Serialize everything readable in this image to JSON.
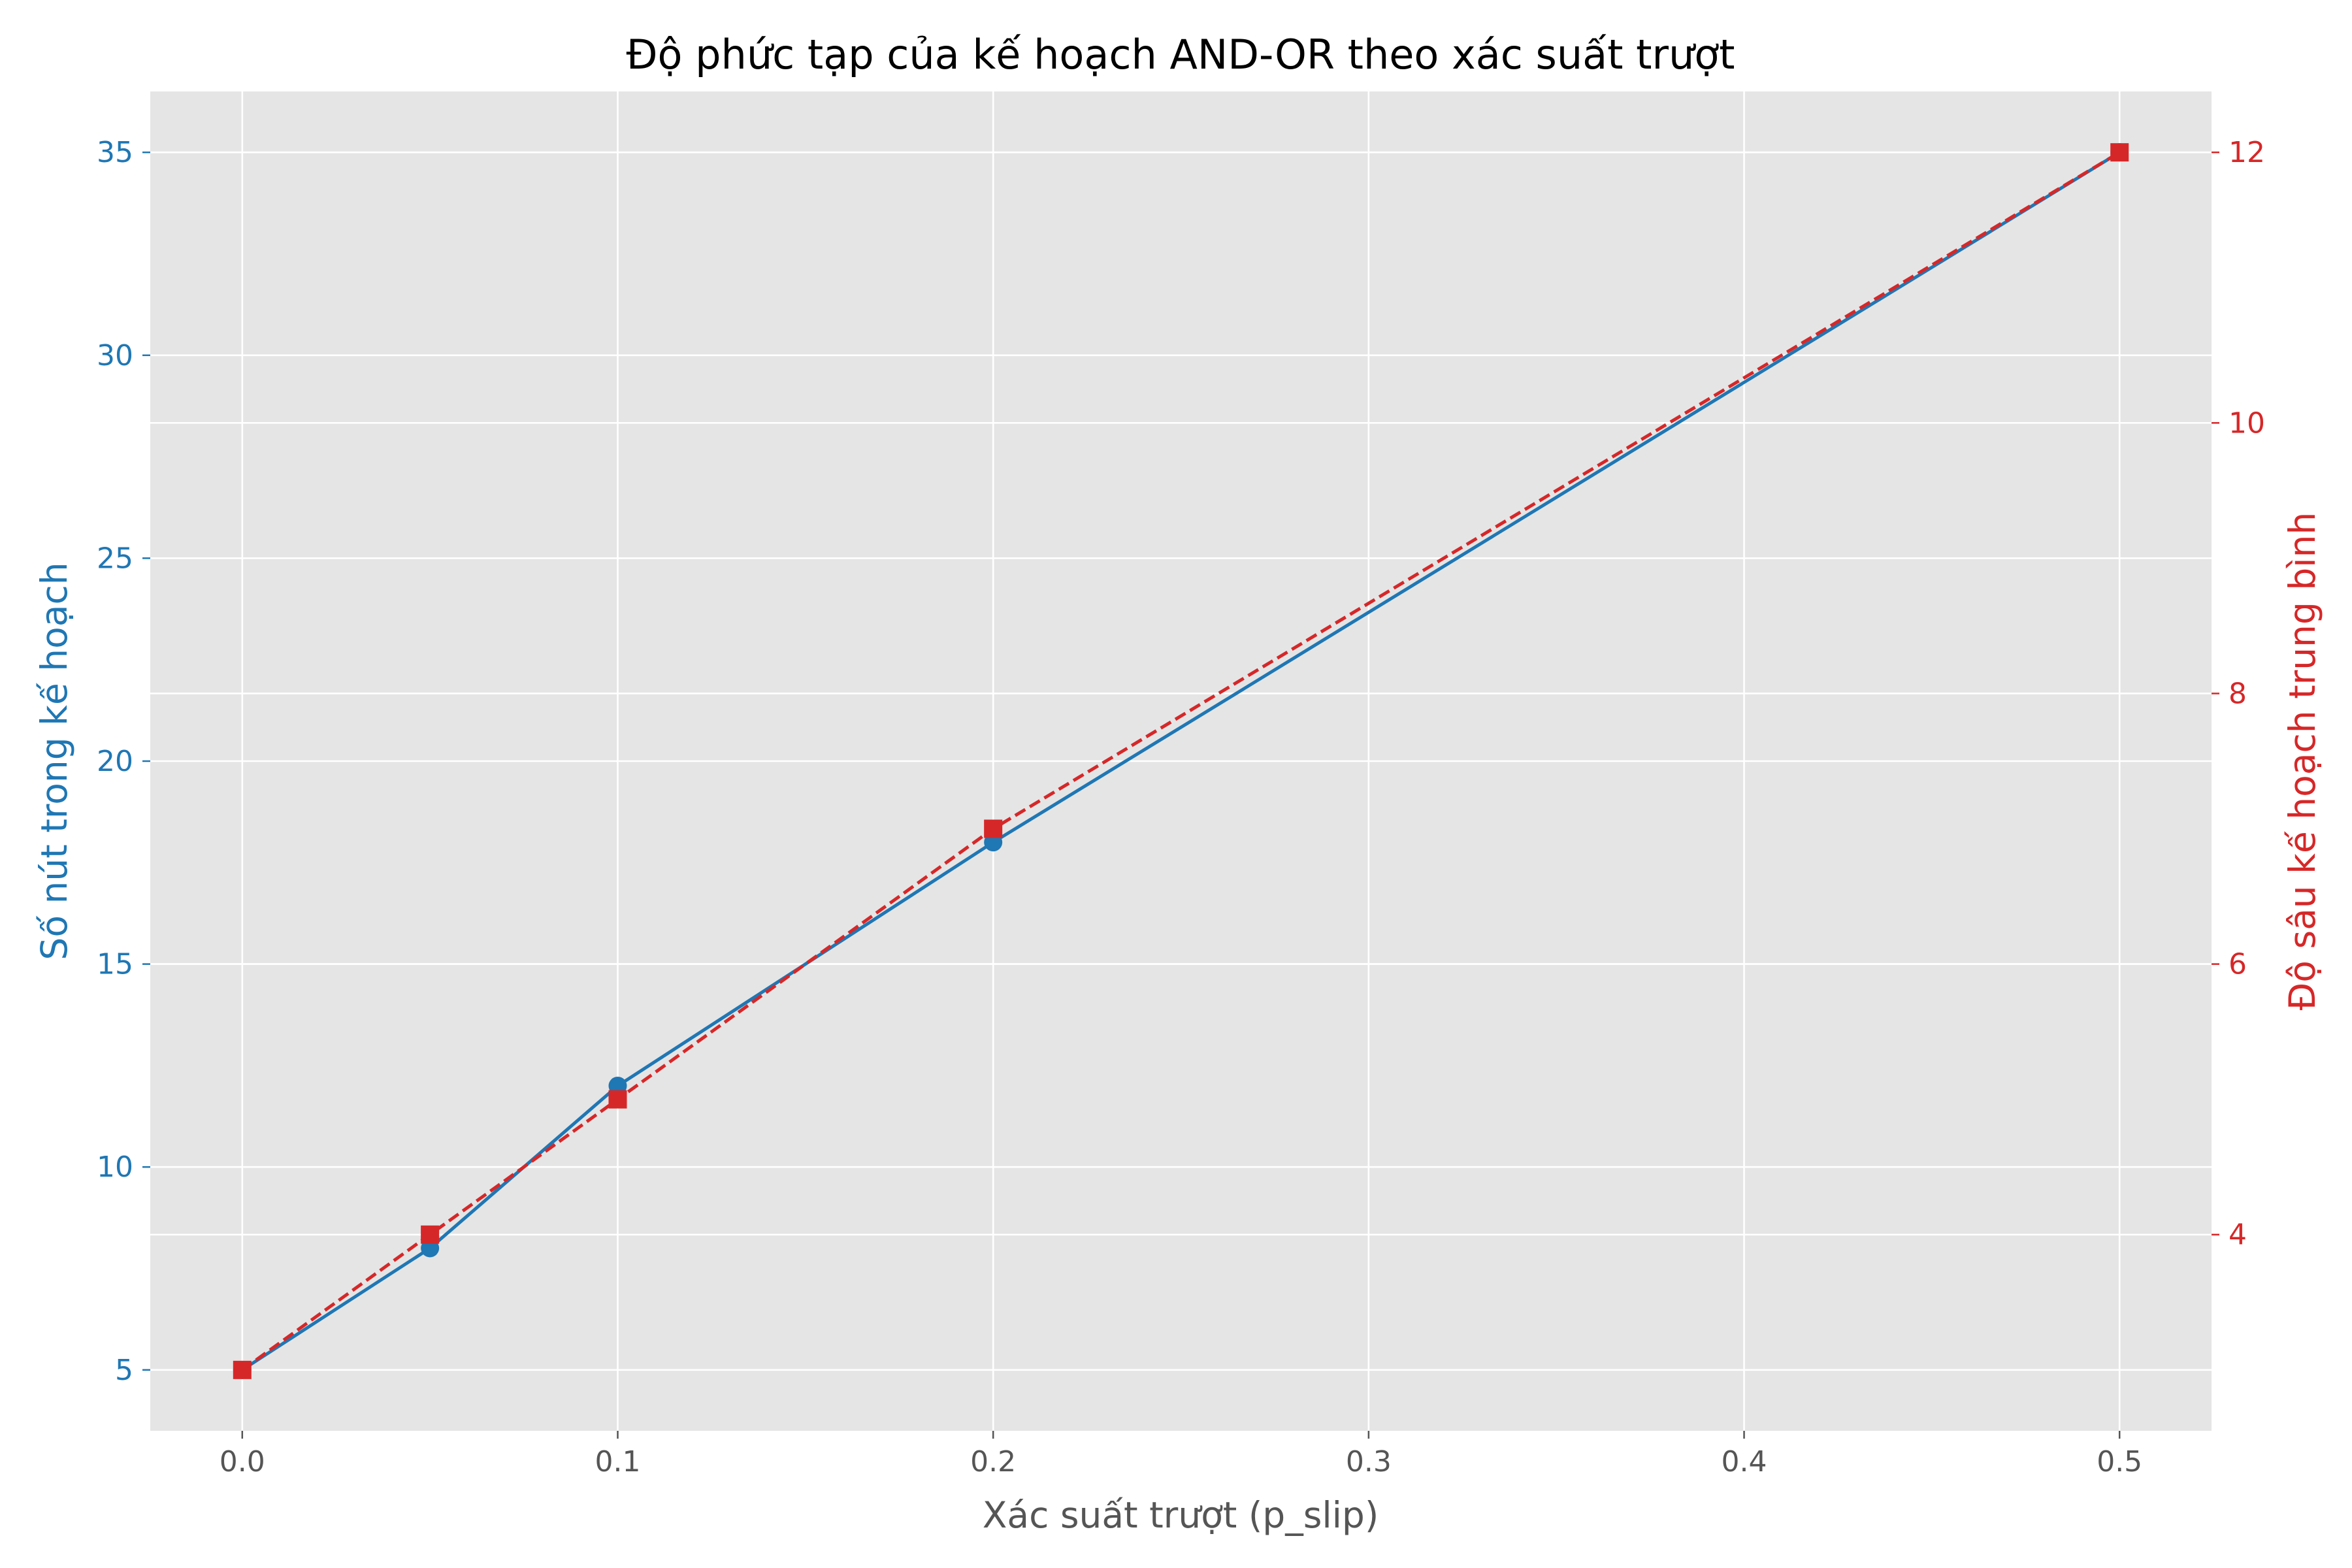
{
  "chart_data": {
    "type": "line",
    "title": "Độ phức tạp của kế hoạch AND-OR theo xác suất trượt",
    "xlabel": "Xác suất trượt (p_slip)",
    "ylabel_left": "Số nút trong kế hoạch",
    "ylabel_right": "Độ sâu kế hoạch trung bình",
    "x": [
      0.0,
      0.05,
      0.1,
      0.2,
      0.5
    ],
    "xlim": [
      -0.0245,
      0.5245
    ],
    "ylim_left": [
      3.5,
      36.5
    ],
    "ylim_right": [
      2.55,
      12.45
    ],
    "xticks": [
      0.0,
      0.1,
      0.2,
      0.3,
      0.4,
      0.5
    ],
    "xtick_labels": [
      "0.0",
      "0.1",
      "0.2",
      "0.3",
      "0.4",
      "0.5"
    ],
    "yticks_left": [
      5,
      10,
      15,
      20,
      25,
      30,
      35
    ],
    "ytick_labels_left": [
      "5",
      "10",
      "15",
      "20",
      "25",
      "30",
      "35"
    ],
    "yticks_right": [
      4,
      6,
      8,
      10,
      12
    ],
    "ytick_labels_right": [
      "4",
      "6",
      "8",
      "10",
      "12"
    ],
    "grid": true,
    "series": [
      {
        "name": "Số nút trong kế hoạch",
        "axis": "left",
        "values": [
          5,
          8,
          12,
          18,
          35
        ],
        "color": "#1f77b4",
        "marker": "circle",
        "linestyle": "solid"
      },
      {
        "name": "Độ sâu kế hoạch trung bình",
        "axis": "right",
        "values": [
          3,
          4,
          5,
          7,
          12
        ],
        "color": "#d62728",
        "marker": "square",
        "linestyle": "dashed"
      }
    ],
    "colors": {
      "plot_background": "#e5e5e5",
      "grid": "#ffffff",
      "left_axis": "#1f77b4",
      "right_axis": "#d62728",
      "xaxis_text": "#555555"
    }
  }
}
